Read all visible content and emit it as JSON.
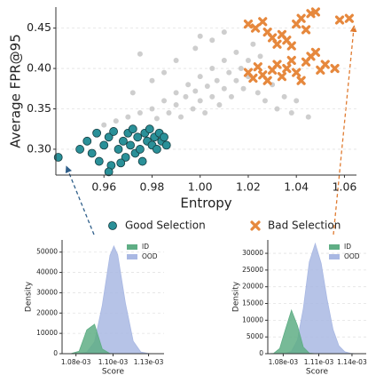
{
  "chart_data": [
    {
      "type": "scatter",
      "xlabel": "Entropy",
      "ylabel": "Average FPR@95",
      "xlim": [
        0.94,
        1.065
      ],
      "ylim": [
        0.268,
        0.476
      ],
      "xticks": [
        0.96,
        0.98,
        {
          "value": 1.0,
          "label": "1.00"
        },
        1.02,
        1.04,
        1.06
      ],
      "yticks": [
        {
          "value": 0.3,
          "label": "0.30"
        },
        0.35,
        {
          "value": 0.4,
          "label": "0.40"
        },
        0.45
      ],
      "grid": true,
      "legend": "below",
      "series": [
        {
          "color": "#c6c6c6",
          "marker": "circle",
          "x": [
            0.96,
            0.965,
            0.97,
            0.975,
            0.98,
            0.982,
            0.985,
            0.987,
            0.99,
            0.99,
            0.992,
            0.994,
            0.995,
            0.997,
            0.998,
            1.0,
            1.0,
            1.002,
            1.003,
            1.005,
            1.005,
            1.007,
            1.008,
            1.01,
            1.01,
            1.012,
            1.013,
            1.015,
            1.015,
            1.017,
            1.018,
            1.02,
            1.02,
            1.022,
            1.024,
            1.025,
            1.027,
            1.03,
            1.032,
            1.035,
            1.038,
            1.04,
            1.045,
            1.0,
            0.998,
            0.99,
            0.98,
            0.972,
            0.975,
            1.005,
            1.01,
            0.985
          ],
          "values": [
            0.33,
            0.335,
            0.34,
            0.345,
            0.35,
            0.338,
            0.36,
            0.345,
            0.355,
            0.37,
            0.34,
            0.365,
            0.38,
            0.35,
            0.372,
            0.36,
            0.39,
            0.345,
            0.378,
            0.365,
            0.4,
            0.385,
            0.355,
            0.375,
            0.41,
            0.395,
            0.365,
            0.385,
            0.42,
            0.4,
            0.375,
            0.41,
            0.39,
            0.43,
            0.37,
            0.415,
            0.36,
            0.38,
            0.35,
            0.365,
            0.345,
            0.36,
            0.34,
            0.44,
            0.425,
            0.41,
            0.385,
            0.37,
            0.418,
            0.435,
            0.445,
            0.395
          ]
        },
        {
          "name": "Good Selection",
          "color": "#2a9098",
          "marker": "circle",
          "x": [
            0.941,
            0.95,
            0.953,
            0.955,
            0.957,
            0.958,
            0.96,
            0.962,
            0.963,
            0.964,
            0.966,
            0.968,
            0.969,
            0.97,
            0.971,
            0.972,
            0.973,
            0.974,
            0.975,
            0.976,
            0.977,
            0.978,
            0.979,
            0.98,
            0.981,
            0.982,
            0.983,
            0.984,
            0.985,
            0.986,
            0.962,
            0.967
          ],
          "values": [
            0.29,
            0.3,
            0.31,
            0.295,
            0.32,
            0.285,
            0.305,
            0.315,
            0.28,
            0.322,
            0.3,
            0.31,
            0.29,
            0.32,
            0.305,
            0.325,
            0.295,
            0.315,
            0.3,
            0.285,
            0.32,
            0.31,
            0.325,
            0.305,
            0.315,
            0.3,
            0.32,
            0.31,
            0.315,
            0.305,
            0.272,
            0.283
          ]
        },
        {
          "name": "Bad Selection",
          "color": "#e6883d",
          "marker": "x",
          "x": [
            1.02,
            1.023,
            1.026,
            1.028,
            1.03,
            1.032,
            1.034,
            1.036,
            1.038,
            1.04,
            1.042,
            1.044,
            1.046,
            1.048,
            1.058,
            1.062,
            1.02,
            1.022,
            1.024,
            1.026,
            1.028,
            1.03,
            1.032,
            1.034,
            1.036,
            1.038,
            1.04,
            1.042,
            1.044,
            1.046,
            1.048,
            1.05,
            1.052,
            1.056
          ],
          "values": [
            0.455,
            0.45,
            0.458,
            0.445,
            0.438,
            0.43,
            0.442,
            0.435,
            0.428,
            0.455,
            0.462,
            0.448,
            0.468,
            0.47,
            0.46,
            0.462,
            0.395,
            0.388,
            0.402,
            0.392,
            0.385,
            0.398,
            0.405,
            0.39,
            0.4,
            0.41,
            0.395,
            0.385,
            0.408,
            0.415,
            0.42,
            0.398,
            0.405,
            0.4
          ]
        }
      ]
    },
    {
      "type": "area",
      "xlabel": "Score",
      "ylabel": "Density",
      "xlim": [
        0.001069,
        0.001135
      ],
      "ylim": [
        0,
        56000
      ],
      "xticks": [
        {
          "value": 0.001078,
          "label": "1.08e-03"
        },
        {
          "value": 0.001102,
          "label": "1.10e-03"
        },
        {
          "value": 0.001125,
          "label": "1.13e-03"
        }
      ],
      "yticks": [
        0,
        10000,
        20000,
        30000,
        40000,
        50000
      ],
      "grid": true,
      "legend": "upper right",
      "series": [
        {
          "name": "ID",
          "color": "#5fae85",
          "x": [
            0.00107,
            0.001075,
            0.00108,
            0.001085,
            0.00109,
            0.001095,
            0.0011,
            0.001105
          ],
          "values": [
            0,
            100,
            1200,
            11700,
            14500,
            2300,
            100,
            0
          ]
        },
        {
          "name": "OOD",
          "color": "#a9b8e3",
          "x": [
            0.00107,
            0.001075,
            0.00108,
            0.001085,
            0.00109,
            0.001095,
            0.0011,
            0.0011025,
            0.001105,
            0.00111,
            0.001115,
            0.00112,
            0.001125,
            0.00113,
            0.001135
          ],
          "values": [
            0,
            0,
            100,
            700,
            5800,
            23700,
            48400,
            53000,
            48800,
            25000,
            6200,
            800,
            100,
            0,
            0
          ]
        }
      ]
    },
    {
      "type": "area",
      "xlabel": "Score",
      "ylabel": "Density",
      "xlim": [
        0.001065,
        0.001148
      ],
      "ylim": [
        0,
        34000
      ],
      "xticks": [
        {
          "value": 0.001078,
          "label": "1.08e-03"
        },
        {
          "value": 0.001108,
          "label": "1.11e-03"
        },
        {
          "value": 0.001136,
          "label": "1.14e-03"
        }
      ],
      "yticks": [
        0,
        5000,
        10000,
        15000,
        20000,
        25000,
        30000
      ],
      "grid": true,
      "legend": "upper right",
      "series": [
        {
          "name": "ID",
          "color": "#5fae85",
          "x": [
            0.001065,
            0.00107,
            0.001075,
            0.00108,
            0.001085,
            0.00109,
            0.001095,
            0.0011,
            0.001105
          ],
          "values": [
            0,
            100,
            1550,
            7400,
            13000,
            8400,
            1950,
            170,
            0
          ]
        },
        {
          "name": "OOD",
          "color": "#a9b8e3",
          "x": [
            0.001065,
            0.00107,
            0.001075,
            0.00108,
            0.001085,
            0.00109,
            0.001095,
            0.0011,
            0.001105,
            0.00111,
            0.001115,
            0.00112,
            0.001125,
            0.00113,
            0.001135,
            0.00114,
            0.001145
          ],
          "values": [
            0,
            0,
            0,
            70,
            730,
            4100,
            13600,
            27400,
            32900,
            27000,
            16200,
            7200,
            2350,
            560,
            100,
            0,
            0
          ]
        }
      ]
    }
  ]
}
